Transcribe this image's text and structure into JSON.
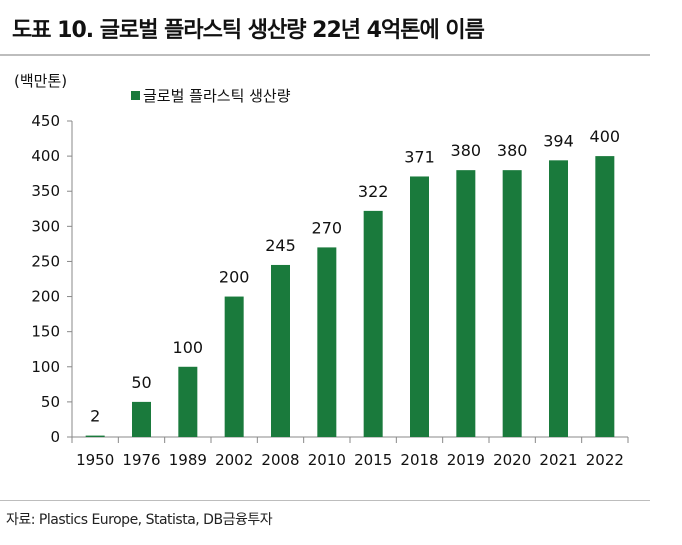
{
  "header": {
    "title": "도표 10. 글로벌 플라스틱 생산량 22년 4억톤에 이름"
  },
  "footer": {
    "source": "자료: Plastics Europe, Statista, DB금융투자"
  },
  "colors": {
    "bar": "#1a7a3c",
    "axis": "#888888",
    "rule": "#bdbdbd"
  },
  "chart_data": {
    "type": "bar",
    "title": "도표 10. 글로벌 플라스틱 생산량 22년 4억톤에 이름",
    "unit_label": "(백만톤)",
    "xlabel": "",
    "ylabel": "(백만톤)",
    "categories": [
      "1950",
      "1976",
      "1989",
      "2002",
      "2008",
      "2010",
      "2015",
      "2018",
      "2019",
      "2020",
      "2021",
      "2022"
    ],
    "series": [
      {
        "name": "글로벌 플라스틱 생산량",
        "values": [
          2,
          50,
          100,
          200,
          245,
          270,
          322,
          371,
          380,
          380,
          394,
          400
        ]
      }
    ],
    "ylim": [
      0,
      450
    ],
    "yticks": [
      0,
      50,
      100,
      150,
      200,
      250,
      300,
      350,
      400,
      450
    ],
    "grid": false,
    "legend": "top-left",
    "data_labels": true
  }
}
